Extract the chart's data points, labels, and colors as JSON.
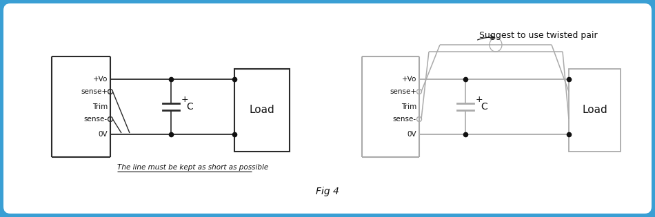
{
  "bg_outer": "#3a9fd4",
  "bg_inner": "#ffffff",
  "line_color": "#2a2a2a",
  "gray_line": "#aaaaaa",
  "dot_color": "#111111",
  "text_color": "#111111",
  "fig_caption": "Fig 4",
  "annotation_left": "The line must be kept as short as possible",
  "annotation_right": "Suggest to use twisted pair",
  "pin_labels": [
    "+Vo",
    "sense+",
    "Trim",
    "sense-",
    "0V"
  ],
  "load_label": "Load",
  "cap_label": "C",
  "cap_plus": "+"
}
